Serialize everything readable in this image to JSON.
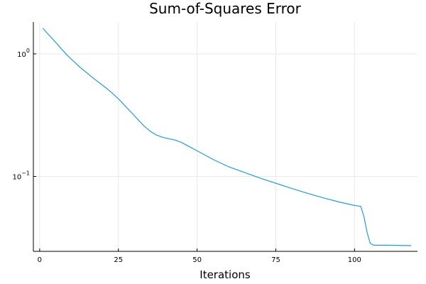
{
  "chart_data": {
    "type": "line",
    "title": "Sum-of-Squares Error",
    "xlabel": "Iterations",
    "ylabel": "",
    "xlim": [
      -2,
      120
    ],
    "ylim": [
      0.0245,
      1.82
    ],
    "yscale": "log",
    "grid": true,
    "legend": "none",
    "xticks": [
      0,
      25,
      50,
      75,
      100
    ],
    "yticks": [
      {
        "value": 1,
        "label_base": "10",
        "label_exp": "0"
      },
      {
        "value": 0.1,
        "label_base": "10",
        "label_exp": "−1"
      }
    ],
    "series": [
      {
        "color": "#1f9de4",
        "x": [
          1,
          3,
          5,
          7,
          9,
          11,
          13,
          15,
          17,
          19,
          21,
          23,
          25,
          27,
          29,
          31,
          33,
          35,
          37,
          39,
          41,
          43,
          45,
          47,
          50,
          55,
          60,
          65,
          70,
          75,
          80,
          85,
          90,
          95,
          100,
          102,
          103,
          104,
          105,
          106,
          110,
          118
        ],
        "y": [
          1.62,
          1.42,
          1.25,
          1.09,
          0.96,
          0.86,
          0.77,
          0.7,
          0.635,
          0.58,
          0.53,
          0.48,
          0.43,
          0.38,
          0.335,
          0.295,
          0.26,
          0.235,
          0.218,
          0.209,
          0.203,
          0.198,
          0.19,
          0.178,
          0.162,
          0.138,
          0.12,
          0.108,
          0.097,
          0.088,
          0.08,
          0.073,
          0.067,
          0.062,
          0.058,
          0.057,
          0.047,
          0.035,
          0.0285,
          0.0275,
          0.0275,
          0.0273
        ]
      }
    ]
  }
}
